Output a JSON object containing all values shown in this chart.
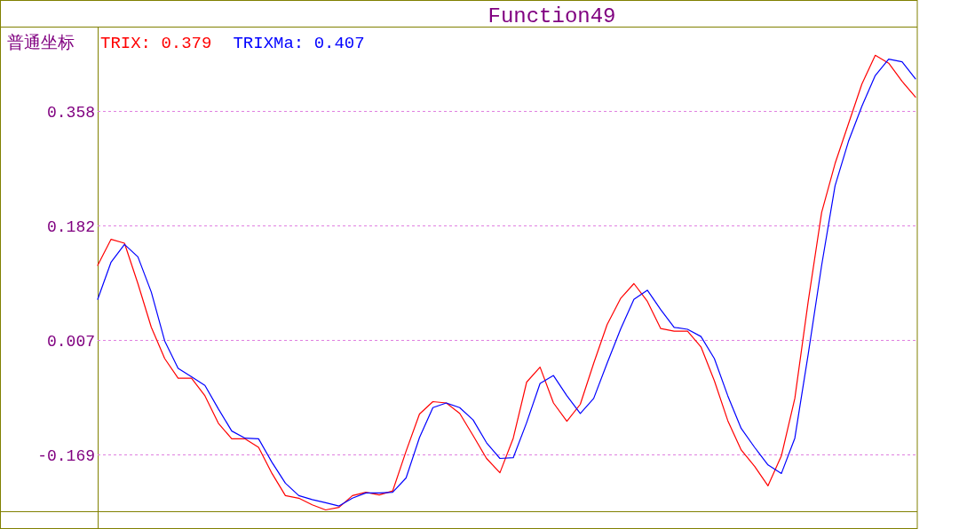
{
  "chart_data": {
    "type": "line",
    "title": "Function49",
    "annotations": [
      "普通坐标"
    ],
    "categories": [
      null,
      null,
      null,
      null,
      null,
      null,
      null,
      null,
      null,
      null,
      null,
      null,
      null,
      null,
      null,
      null,
      null,
      null,
      null,
      null,
      null,
      null,
      null,
      null,
      null,
      null,
      null,
      null,
      null,
      null,
      null,
      null,
      null,
      null,
      null,
      null,
      null,
      null,
      null,
      null,
      null,
      null,
      null,
      null,
      null,
      null,
      null,
      null,
      null,
      null,
      null,
      null,
      null,
      null,
      null,
      null,
      null,
      null,
      null,
      null,
      null,
      null
    ],
    "series": [
      {
        "name": "TRIX: 0.379",
        "color": "#ff0000",
        "values": [
          0.121,
          0.161,
          0.155,
          0.093,
          0.026,
          -0.022,
          -0.052,
          -0.052,
          -0.079,
          -0.121,
          -0.145,
          -0.145,
          -0.158,
          -0.198,
          -0.232,
          -0.236,
          -0.246,
          -0.254,
          -0.25,
          -0.232,
          -0.227,
          -0.231,
          -0.225,
          -0.164,
          -0.107,
          -0.088,
          -0.09,
          -0.106,
          -0.14,
          -0.175,
          -0.197,
          -0.144,
          -0.058,
          -0.035,
          -0.09,
          -0.118,
          -0.092,
          -0.029,
          0.03,
          0.07,
          0.093,
          0.066,
          0.024,
          0.02,
          0.02,
          -0.004,
          -0.056,
          -0.117,
          -0.162,
          -0.187,
          -0.217,
          -0.171,
          -0.083,
          0.066,
          0.202,
          0.277,
          0.338,
          0.399,
          0.443,
          0.431,
          0.403,
          0.379
        ]
      },
      {
        "name": "TRIXMa: 0.407",
        "color": "#0000ff",
        "values": [
          0.069,
          0.126,
          0.153,
          0.134,
          0.08,
          0.005,
          -0.037,
          -0.05,
          -0.063,
          -0.099,
          -0.133,
          -0.144,
          -0.145,
          -0.181,
          -0.213,
          -0.232,
          -0.238,
          -0.243,
          -0.248,
          -0.236,
          -0.228,
          -0.228,
          -0.227,
          -0.205,
          -0.143,
          -0.097,
          -0.09,
          -0.097,
          -0.116,
          -0.151,
          -0.175,
          -0.174,
          -0.12,
          -0.06,
          -0.048,
          -0.079,
          -0.106,
          -0.083,
          -0.029,
          0.023,
          0.069,
          0.083,
          0.053,
          0.026,
          0.023,
          0.012,
          -0.022,
          -0.079,
          -0.129,
          -0.158,
          -0.185,
          -0.198,
          -0.144,
          -0.015,
          0.121,
          0.243,
          0.311,
          0.365,
          0.412,
          0.437,
          0.433,
          0.407
        ]
      }
    ],
    "ylim": [
      -0.256,
      0.487
    ],
    "yticks": [
      0.358,
      0.182,
      0.007,
      -0.169
    ],
    "grid": "y",
    "legend": "top left"
  }
}
